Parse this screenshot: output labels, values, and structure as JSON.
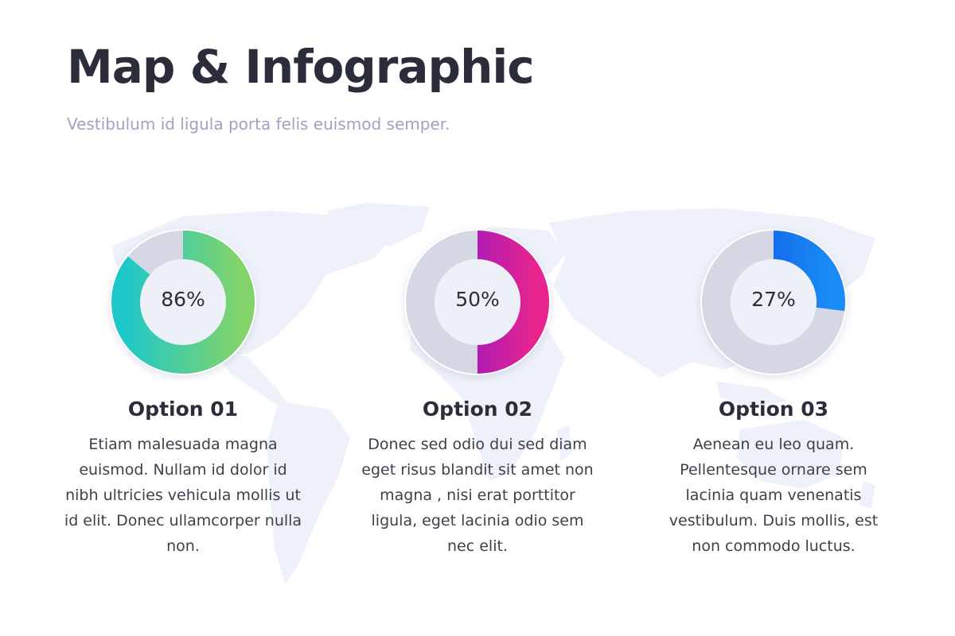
{
  "header": {
    "title": "Map & Infographic",
    "subtitle": "Vestibulum id ligula porta felis euismod semper."
  },
  "colors": {
    "map": "#eef1f9",
    "track": "#d6d7e4",
    "inner": "#eef0f8",
    "text_dark": "#2b2d3a",
    "subtitle": "#a3a1c2"
  },
  "chart_data": {
    "type": "pie",
    "series": [
      {
        "name": "Option 01",
        "label": "86%",
        "value": 86,
        "gradient": [
          "#1fc8c8",
          "#82d46a"
        ],
        "description": "Etiam malesuada magna euismod. Nullam id dolor id nibh ultricies vehicula mollis ut id elit. Donec ullamcorper nulla non."
      },
      {
        "name": "Option 02",
        "label": "50%",
        "value": 50,
        "gradient": [
          "#7b11d6",
          "#e8258e"
        ],
        "description": "Donec sed odio dui sed diam eget risus blandit sit amet non magna , nisi erat porttitor ligula, eget lacinia odio sem nec elit."
      },
      {
        "name": "Option 03",
        "label": "27%",
        "value": 27,
        "gradient": [
          "#0a4fe4",
          "#1a8cf5"
        ],
        "description": "Aenean eu leo quam. Pellentesque ornare sem lacinia quam venenatis vestibulum. Duis mollis, est non commodo luctus."
      }
    ]
  }
}
